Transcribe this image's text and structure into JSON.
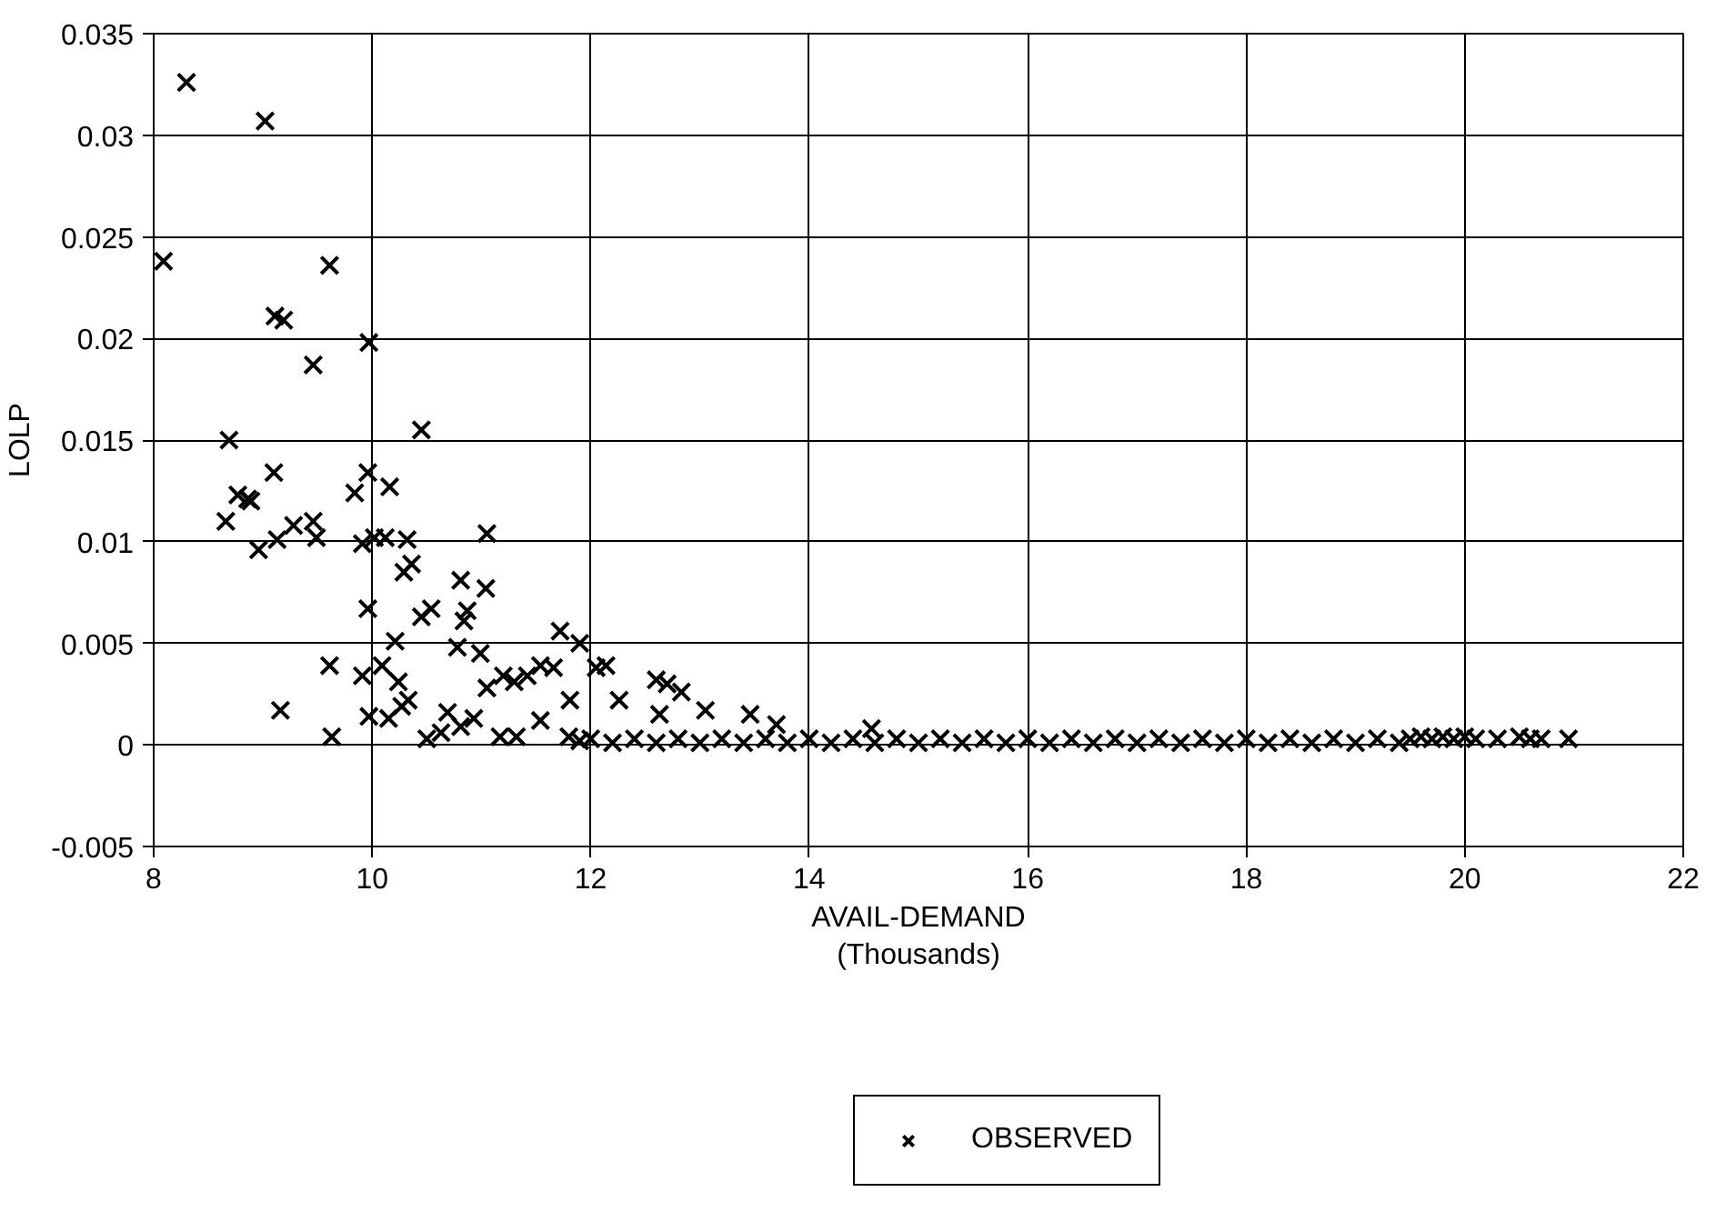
{
  "chart_data": {
    "type": "scatter",
    "xlabel": "AVAIL-DEMAND\n(Thousands)",
    "ylabel": "LOLP",
    "xlim": [
      8,
      22
    ],
    "xticks": [
      8,
      10,
      12,
      14,
      16,
      18,
      20,
      22
    ],
    "ylim": [
      -0.005,
      0.035
    ],
    "yticks": [
      -0.005,
      0,
      0.005,
      0.01,
      0.015,
      0.02,
      0.025,
      0.03,
      0.035
    ],
    "grid": true,
    "legend": "bottom",
    "marker": "cross",
    "series": [
      {
        "name": "OBSERVED",
        "color": "#000000",
        "x": [
          8.3,
          9.02,
          8.09,
          9.61,
          9.11,
          9.19,
          9.97,
          9.46,
          10.45,
          8.69,
          9.1,
          8.77,
          8.86,
          8.89,
          8.66,
          8.96,
          9.13,
          9.28,
          9.46,
          9.49,
          9.84,
          9.96,
          10.16,
          9.91,
          10.02,
          10.12,
          10.32,
          10.29,
          10.36,
          11.05,
          9.96,
          10.45,
          10.54,
          10.81,
          11.04,
          10.87,
          10.84,
          10.21,
          10.78,
          10.99,
          9.61,
          9.91,
          10.09,
          10.24,
          10.33,
          9.16,
          9.63,
          9.97,
          10.15,
          10.27,
          10.5,
          10.63,
          10.69,
          10.93,
          11.05,
          11.2,
          11.3,
          11.42,
          11.54,
          11.66,
          11.72,
          11.9,
          12.05,
          11.17,
          11.32,
          11.54,
          10.81,
          11.81,
          12.14,
          12.6,
          12.7,
          12.83,
          13.05,
          13.46,
          13.7,
          14.57,
          12.26,
          12.63,
          11.8,
          11.9,
          12.0,
          12.2,
          12.4,
          12.6,
          12.8,
          13.0,
          13.2,
          13.4,
          13.6,
          13.8,
          14.0,
          14.2,
          14.4,
          14.6,
          14.8,
          15.0,
          15.2,
          15.4,
          15.6,
          15.8,
          16.0,
          16.2,
          16.4,
          16.6,
          16.8,
          17.0,
          17.2,
          17.4,
          17.6,
          17.8,
          18.0,
          18.2,
          18.4,
          18.6,
          18.8,
          19.0,
          19.2,
          19.4,
          19.5,
          19.6,
          19.7,
          19.8,
          19.9,
          20.0,
          20.1,
          20.3,
          20.5,
          20.6,
          20.7,
          20.95
        ],
        "values": [
          0.0326,
          0.0307,
          0.0238,
          0.0236,
          0.0211,
          0.0209,
          0.0198,
          0.0187,
          0.0155,
          0.015,
          0.0134,
          0.0123,
          0.0121,
          0.012,
          0.011,
          0.0096,
          0.0101,
          0.0108,
          0.011,
          0.0102,
          0.0124,
          0.0134,
          0.0127,
          0.0099,
          0.0102,
          0.0102,
          0.0101,
          0.0085,
          0.0089,
          0.0104,
          0.0067,
          0.0063,
          0.0067,
          0.0081,
          0.0077,
          0.0066,
          0.0061,
          0.0051,
          0.0048,
          0.0045,
          0.0039,
          0.0034,
          0.0039,
          0.0031,
          0.0022,
          0.0017,
          0.0004,
          0.0014,
          0.0013,
          0.0019,
          0.0003,
          0.0006,
          0.0016,
          0.0013,
          0.0028,
          0.0034,
          0.0031,
          0.0034,
          0.0039,
          0.0038,
          0.0056,
          0.005,
          0.0038,
          0.0004,
          0.0004,
          0.0012,
          0.0009,
          0.0022,
          0.0039,
          0.0032,
          0.003,
          0.0026,
          0.0017,
          0.0015,
          0.001,
          0.0008,
          0.0022,
          0.0015,
          0.0004,
          0.0002,
          0.0003,
          0.0001,
          0.0003,
          0.0001,
          0.0003,
          0.0001,
          0.0003,
          0.0001,
          0.0003,
          0.0001,
          0.0003,
          0.0001,
          0.0003,
          0.0001,
          0.0003,
          0.0001,
          0.0003,
          0.0001,
          0.0003,
          0.0001,
          0.0003,
          0.0001,
          0.0003,
          0.0001,
          0.0003,
          0.0001,
          0.0003,
          0.0001,
          0.0003,
          0.0001,
          0.0003,
          0.0001,
          0.0003,
          0.0001,
          0.0003,
          0.0001,
          0.0003,
          0.0001,
          0.0003,
          0.0004,
          0.0003,
          0.0004,
          0.0003,
          0.0004,
          0.0003,
          0.0003,
          0.0004,
          0.0003,
          0.0003,
          0.0003
        ]
      }
    ]
  }
}
